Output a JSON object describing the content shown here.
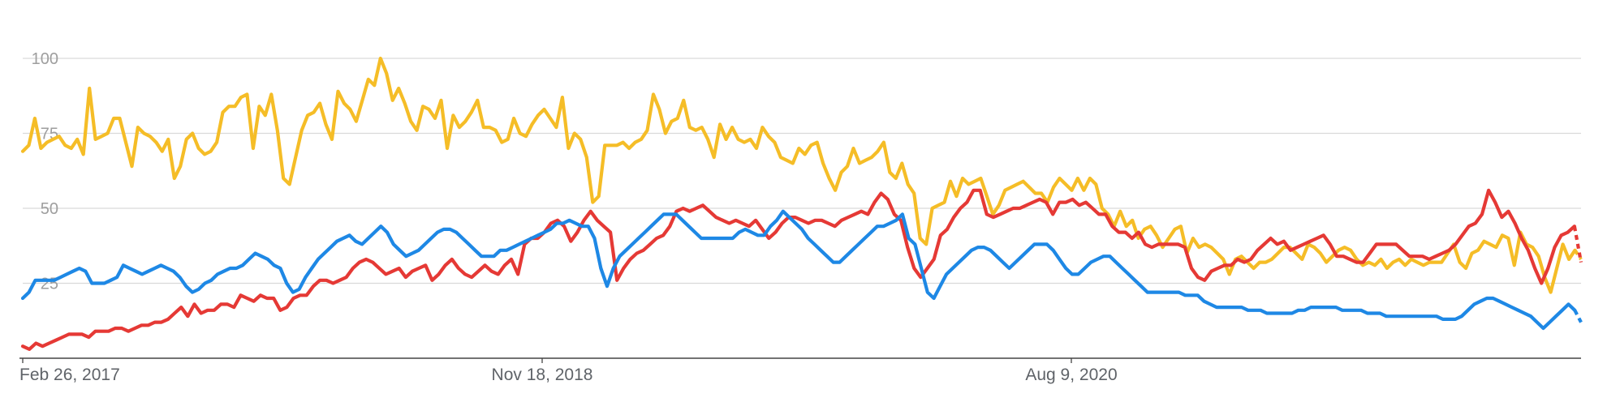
{
  "chart_data": {
    "type": "line",
    "title": "",
    "xlabel": "",
    "ylabel": "",
    "ylim": [
      0,
      100
    ],
    "yticks": [
      25,
      50,
      75,
      100
    ],
    "grid": true,
    "x_axis_labels": [
      "Feb 26, 2017",
      "Nov 18, 2018",
      "Aug 9, 2020"
    ],
    "series": [
      {
        "color": "#f5bd27",
        "values": [
          69,
          71,
          80,
          70,
          72,
          73,
          74,
          71,
          70,
          73,
          68,
          90,
          73,
          74,
          75,
          80,
          80,
          72,
          64,
          77,
          75,
          74,
          72,
          69,
          73,
          60,
          64,
          73,
          75,
          70,
          68,
          69,
          72,
          82,
          84,
          84,
          87,
          88,
          70,
          84,
          81,
          88,
          76,
          60,
          58,
          67,
          76,
          81,
          82,
          85,
          78,
          73,
          89,
          85,
          83,
          79,
          86,
          93,
          91,
          100,
          95,
          86,
          90,
          85,
          79,
          76,
          84,
          83,
          80,
          86,
          70,
          81,
          77,
          79,
          82,
          86,
          77,
          77,
          76,
          72,
          73,
          80,
          75,
          74,
          78,
          81,
          83,
          80,
          77,
          87,
          70,
          75,
          73,
          67,
          52,
          54,
          71,
          71,
          71,
          72,
          70,
          72,
          73,
          76,
          88,
          83,
          75,
          79,
          80,
          86,
          77,
          76,
          77,
          73,
          67,
          78,
          73,
          77,
          73,
          72,
          73,
          70,
          77,
          74,
          72,
          67,
          66,
          65,
          70,
          68,
          71,
          72,
          65,
          60,
          56,
          62,
          64,
          70,
          65,
          66,
          67,
          69,
          72,
          62,
          60,
          65,
          58,
          55,
          40,
          38,
          50,
          51,
          52,
          59,
          54,
          60,
          58,
          59,
          60,
          54,
          48,
          51,
          56,
          57,
          58,
          59,
          57,
          55,
          55,
          52,
          57,
          60,
          58,
          56,
          60,
          56,
          60,
          58,
          50,
          48,
          44,
          49,
          44,
          46,
          40,
          43,
          44,
          41,
          37,
          40,
          43,
          44,
          35,
          40,
          37,
          38,
          37,
          35,
          33,
          28,
          33,
          34,
          32,
          30,
          32,
          32,
          33,
          35,
          37,
          37,
          35,
          33,
          38,
          37,
          35,
          32,
          34,
          36,
          37,
          36,
          33,
          31,
          32,
          31,
          33,
          30,
          32,
          33,
          31,
          33,
          32,
          31,
          32,
          32,
          32,
          35,
          38,
          32,
          30,
          35,
          36,
          39,
          38,
          37,
          41,
          40,
          31,
          42,
          38,
          37,
          34,
          27,
          22,
          30,
          38,
          33,
          36,
          33
        ]
      },
      {
        "color": "#e53935",
        "values": [
          4,
          3,
          5,
          4,
          5,
          6,
          7,
          8,
          8,
          8,
          7,
          9,
          9,
          9,
          10,
          10,
          9,
          10,
          11,
          11,
          12,
          12,
          13,
          15,
          17,
          14,
          18,
          15,
          16,
          16,
          18,
          18,
          17,
          21,
          20,
          19,
          21,
          20,
          20,
          16,
          17,
          20,
          21,
          21,
          24,
          26,
          26,
          25,
          26,
          27,
          30,
          32,
          33,
          32,
          30,
          28,
          29,
          30,
          27,
          29,
          30,
          31,
          26,
          28,
          31,
          33,
          30,
          28,
          27,
          29,
          31,
          29,
          28,
          31,
          33,
          28,
          38,
          40,
          40,
          42,
          45,
          46,
          44,
          39,
          42,
          46,
          49,
          46,
          44,
          42,
          26,
          30,
          33,
          35,
          36,
          38,
          40,
          41,
          44,
          49,
          50,
          49,
          50,
          51,
          49,
          47,
          46,
          45,
          46,
          45,
          44,
          46,
          43,
          40,
          42,
          45,
          47,
          47,
          46,
          45,
          46,
          46,
          45,
          44,
          46,
          47,
          48,
          49,
          48,
          52,
          55,
          53,
          48,
          46,
          37,
          30,
          27,
          30,
          33,
          41,
          43,
          47,
          50,
          52,
          56,
          56,
          48,
          47,
          48,
          49,
          50,
          50,
          51,
          52,
          53,
          52,
          48,
          52,
          52,
          53,
          51,
          52,
          50,
          48,
          48,
          44,
          42,
          42,
          40,
          42,
          38,
          37,
          38,
          38,
          38,
          38,
          37,
          30,
          27,
          26,
          29,
          30,
          31,
          31,
          33,
          32,
          33,
          36,
          38,
          40,
          38,
          39,
          36,
          37,
          38,
          39,
          40,
          41,
          38,
          34,
          34,
          33,
          32,
          32,
          35,
          38,
          38,
          38,
          38,
          36,
          34,
          34,
          34,
          33,
          34,
          35,
          36,
          38,
          41,
          44,
          45,
          48,
          56,
          52,
          47,
          49,
          45,
          40,
          36,
          30,
          25,
          30,
          37,
          41,
          42,
          44,
          32
        ]
      },
      {
        "color": "#1e88e5",
        "values": [
          20,
          22,
          26,
          26,
          26,
          26,
          27,
          28,
          29,
          30,
          29,
          25,
          25,
          25,
          26,
          27,
          31,
          30,
          29,
          28,
          29,
          30,
          31,
          30,
          29,
          27,
          24,
          22,
          23,
          25,
          26,
          28,
          29,
          30,
          30,
          31,
          33,
          35,
          34,
          33,
          31,
          30,
          25,
          22,
          23,
          27,
          30,
          33,
          35,
          37,
          39,
          40,
          41,
          39,
          38,
          40,
          42,
          44,
          42,
          38,
          36,
          34,
          35,
          36,
          38,
          40,
          42,
          43,
          43,
          42,
          40,
          38,
          36,
          34,
          34,
          34,
          36,
          36,
          37,
          38,
          39,
          40,
          41,
          42,
          43,
          45,
          45,
          46,
          45,
          44,
          44,
          40,
          30,
          24,
          30,
          34,
          36,
          38,
          40,
          42,
          44,
          46,
          48,
          48,
          48,
          46,
          44,
          42,
          40,
          40,
          40,
          40,
          40,
          40,
          42,
          43,
          42,
          41,
          41,
          44,
          46,
          49,
          47,
          45,
          43,
          40,
          38,
          36,
          34,
          32,
          32,
          34,
          36,
          38,
          40,
          42,
          44,
          44,
          45,
          46,
          48,
          40,
          38,
          30,
          22,
          20,
          24,
          28,
          30,
          32,
          34,
          36,
          37,
          37,
          36,
          34,
          32,
          30,
          32,
          34,
          36,
          38,
          38,
          38,
          36,
          33,
          30,
          28,
          28,
          30,
          32,
          33,
          34,
          34,
          32,
          30,
          28,
          26,
          24,
          22,
          22,
          22,
          22,
          22,
          22,
          21,
          21,
          21,
          19,
          18,
          17,
          17,
          17,
          17,
          17,
          16,
          16,
          16,
          15,
          15,
          15,
          15,
          15,
          16,
          16,
          17,
          17,
          17,
          17,
          17,
          16,
          16,
          16,
          16,
          15,
          15,
          15,
          14,
          14,
          14,
          14,
          14,
          14,
          14,
          14,
          14,
          13,
          13,
          13,
          14,
          16,
          18,
          19,
          20,
          20,
          19,
          18,
          17,
          16,
          15,
          14,
          12,
          10,
          12,
          14,
          16,
          18,
          16,
          12
        ]
      }
    ]
  }
}
